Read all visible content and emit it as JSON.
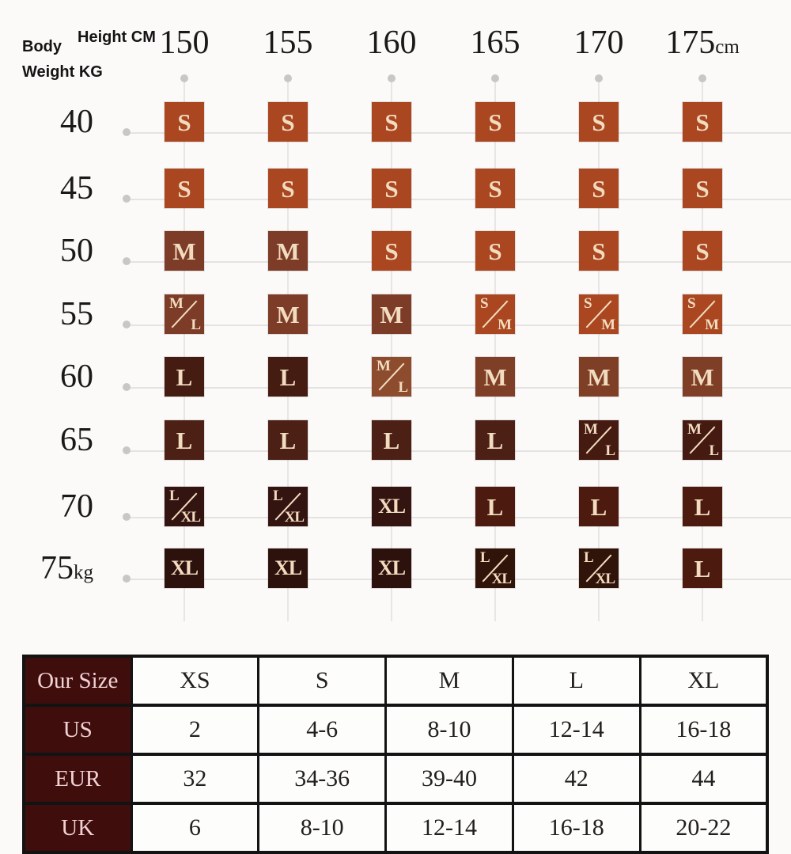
{
  "size_grid": {
    "corner": {
      "body_label": "Body",
      "weight_label": "Weight KG",
      "height_label": "Height CM"
    },
    "columns": [
      "150",
      "155",
      "160",
      "165",
      "170",
      "175"
    ],
    "column_suffix": "cm",
    "rows": [
      "40",
      "45",
      "50",
      "55",
      "60",
      "65",
      "70",
      "75"
    ],
    "row_suffix": "kg",
    "cell_text_color": "#F2DCC0",
    "cells": [
      [
        {
          "t": "S",
          "c": "#AA4721"
        },
        {
          "t": "S",
          "c": "#AA4721"
        },
        {
          "t": "S",
          "c": "#AA4721"
        },
        {
          "t": "S",
          "c": "#AA4721"
        },
        {
          "t": "S",
          "c": "#AA4721"
        },
        {
          "t": "S",
          "c": "#AA4721"
        }
      ],
      [
        {
          "t": "S",
          "c": "#AA4721"
        },
        {
          "t": "S",
          "c": "#AA4721"
        },
        {
          "t": "S",
          "c": "#AA4721"
        },
        {
          "t": "S",
          "c": "#AA4721"
        },
        {
          "t": "S",
          "c": "#AA4721"
        },
        {
          "t": "S",
          "c": "#AA4721"
        }
      ],
      [
        {
          "t": "M",
          "c": "#7C3C27"
        },
        {
          "t": "M",
          "c": "#7C3C27"
        },
        {
          "t": "S",
          "c": "#AA4721"
        },
        {
          "t": "S",
          "c": "#AA4721"
        },
        {
          "t": "S",
          "c": "#AA4721"
        },
        {
          "t": "S",
          "c": "#AA4721"
        }
      ],
      [
        {
          "t": "M/L",
          "c": "#7C3C27"
        },
        {
          "t": "M",
          "c": "#7C3C27"
        },
        {
          "t": "M",
          "c": "#7C3C27"
        },
        {
          "t": "S/M",
          "c": "#AA4721"
        },
        {
          "t": "S/M",
          "c": "#AA4721"
        },
        {
          "t": "S/M",
          "c": "#AA4721"
        }
      ],
      [
        {
          "t": "L",
          "c": "#451C12"
        },
        {
          "t": "L",
          "c": "#451C12"
        },
        {
          "t": "M/L",
          "c": "#8D4C2E"
        },
        {
          "t": "M",
          "c": "#7F3E26"
        },
        {
          "t": "M",
          "c": "#7F3E26"
        },
        {
          "t": "M",
          "c": "#7F3E26"
        }
      ],
      [
        {
          "t": "L",
          "c": "#4C2015"
        },
        {
          "t": "L",
          "c": "#4C2015"
        },
        {
          "t": "L",
          "c": "#4C2015"
        },
        {
          "t": "L",
          "c": "#4C2015"
        },
        {
          "t": "M/L",
          "c": "#451A11"
        },
        {
          "t": "M/L",
          "c": "#451A11"
        }
      ],
      [
        {
          "t": "L/XL",
          "c": "#341410"
        },
        {
          "t": "L/XL",
          "c": "#341410"
        },
        {
          "t": "XL",
          "c": "#341410"
        },
        {
          "t": "L",
          "c": "#4C1A0F"
        },
        {
          "t": "L",
          "c": "#4C1A0F"
        },
        {
          "t": "L",
          "c": "#4C1A0F"
        }
      ],
      [
        {
          "t": "XL",
          "c": "#2D110C"
        },
        {
          "t": "XL",
          "c": "#2D110C"
        },
        {
          "t": "XL",
          "c": "#2D110C"
        },
        {
          "t": "L/XL",
          "c": "#301309"
        },
        {
          "t": "L/XL",
          "c": "#301309"
        },
        {
          "t": "L",
          "c": "#4C1A0F"
        }
      ]
    ]
  },
  "conversion_table": {
    "header_col_bg": "#400D0D",
    "header_col_fg": "#F0D2D2",
    "rows": [
      {
        "header": "Our Size",
        "values": [
          "XS",
          "S",
          "M",
          "L",
          "XL"
        ]
      },
      {
        "header": "US",
        "values": [
          "2",
          "4-6",
          "8-10",
          "12-14",
          "16-18"
        ]
      },
      {
        "header": "EUR",
        "values": [
          "32",
          "34-36",
          "39-40",
          "42",
          "44"
        ]
      },
      {
        "header": "UK",
        "values": [
          "6",
          "8-10",
          "12-14",
          "16-18",
          "20-22"
        ]
      }
    ]
  },
  "chart_data": [
    {
      "type": "heatmap",
      "title": "Recommended size by height and body weight",
      "xlabel": "Height CM",
      "ylabel": "Body Weight KG",
      "x": [
        "150",
        "155",
        "160",
        "165",
        "170",
        "175cm"
      ],
      "y": [
        "40",
        "45",
        "50",
        "55",
        "60",
        "65",
        "70",
        "75kg"
      ],
      "values": [
        [
          "S",
          "S",
          "S",
          "S",
          "S",
          "S"
        ],
        [
          "S",
          "S",
          "S",
          "S",
          "S",
          "S"
        ],
        [
          "M",
          "M",
          "S",
          "S",
          "S",
          "S"
        ],
        [
          "M/L",
          "M",
          "M",
          "S/M",
          "S/M",
          "S/M"
        ],
        [
          "L",
          "L",
          "M/L",
          "M",
          "M",
          "M"
        ],
        [
          "L",
          "L",
          "L",
          "L",
          "M/L",
          "M/L"
        ],
        [
          "L/XL",
          "L/XL",
          "XL",
          "L",
          "L",
          "L"
        ],
        [
          "XL",
          "XL",
          "XL",
          "L/XL",
          "L/XL",
          "L"
        ]
      ],
      "legend_position": "none",
      "grid": true
    },
    {
      "type": "table",
      "columns": [
        "Our Size",
        "XS",
        "S",
        "M",
        "L",
        "XL"
      ],
      "rows": [
        [
          "US",
          "2",
          "4-6",
          "8-10",
          "12-14",
          "16-18"
        ],
        [
          "EUR",
          "32",
          "34-36",
          "39-40",
          "42",
          "44"
        ],
        [
          "UK",
          "6",
          "8-10",
          "12-14",
          "16-18",
          "20-22"
        ]
      ]
    }
  ]
}
